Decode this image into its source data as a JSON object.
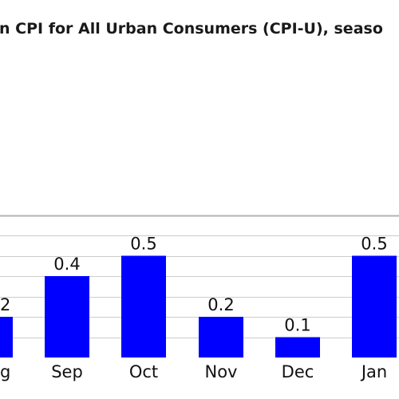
{
  "chart_data": {
    "type": "bar",
    "title": "n CPI for All Urban Consumers (CPI-U), seaso",
    "categories": [
      "Aug",
      "Sep",
      "Oct",
      "Nov",
      "Dec",
      "Jan"
    ],
    "visible_category_labels": [
      "g",
      "Sep",
      "Oct",
      "Nov",
      "Dec",
      "Jan"
    ],
    "values": [
      0.2,
      0.4,
      0.5,
      0.2,
      0.1,
      0.5
    ],
    "visible_value_labels": [
      "2",
      "0.4",
      "0.5",
      "0.2",
      "0.1",
      "0.5"
    ],
    "ylim": [
      0,
      0.7
    ],
    "xlabel": "",
    "ylabel": "",
    "grid": true,
    "bar_color": "#0000ff",
    "grid_color": "#cccccc",
    "top_line_color": "#b3b3b3"
  }
}
